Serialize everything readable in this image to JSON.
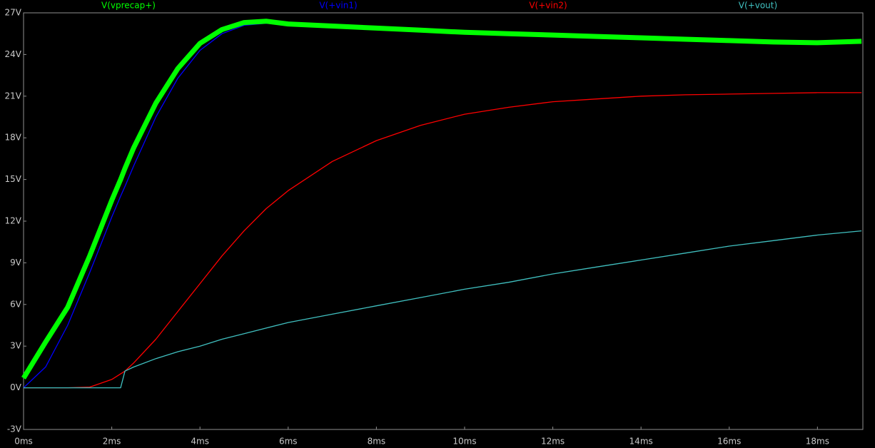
{
  "chart_data": {
    "type": "line",
    "x": [
      0,
      0.5,
      1,
      1.5,
      2,
      2.2,
      2.3,
      2.5,
      3,
      3.5,
      4,
      4.5,
      5,
      5.5,
      6,
      7,
      8,
      9,
      10,
      11,
      12,
      13,
      14,
      15,
      16,
      17,
      18,
      19
    ],
    "series": [
      {
        "name": "V(vprecap+)",
        "color": "#00ff00",
        "values": [
          0.7,
          3.3,
          5.8,
          9.5,
          13.5,
          15,
          15.8,
          17.3,
          20.5,
          23,
          24.8,
          25.8,
          26.3,
          26.4,
          26.2,
          26.05,
          25.9,
          25.75,
          25.6,
          25.5,
          25.4,
          25.3,
          25.2,
          25.1,
          25.0,
          24.9,
          24.85,
          24.95
        ]
      },
      {
        "name": "V(+vin1)",
        "color": "#0000ff",
        "values": [
          0,
          1.5,
          4.5,
          8.3,
          12.3,
          13.8,
          14.5,
          16,
          19.5,
          22.3,
          24.3,
          25.5,
          26.1,
          26.25,
          26.15,
          26.05,
          25.9,
          25.75,
          25.6,
          25.5,
          25.4,
          25.3,
          25.2,
          25.1,
          25.0,
          24.9,
          24.85,
          24.85
        ]
      },
      {
        "name": "V(+vin2)",
        "color": "#ff0000",
        "values": [
          0,
          0,
          0,
          0.05,
          0.6,
          1.0,
          1.2,
          1.8,
          3.5,
          5.5,
          7.5,
          9.5,
          11.3,
          12.9,
          14.2,
          16.3,
          17.8,
          18.9,
          19.7,
          20.2,
          20.6,
          20.8,
          21.0,
          21.1,
          21.15,
          21.2,
          21.25,
          21.25
        ]
      },
      {
        "name": "V(+vout)",
        "color": "#40c0c0",
        "values": [
          0,
          0,
          0,
          0,
          0,
          0,
          1.2,
          1.5,
          2.1,
          2.6,
          3.0,
          3.5,
          3.9,
          4.3,
          4.7,
          5.3,
          5.9,
          6.5,
          7.1,
          7.6,
          8.2,
          8.7,
          9.2,
          9.7,
          10.2,
          10.6,
          11.0,
          11.3
        ]
      }
    ],
    "xlim": [
      0,
      19.03
    ],
    "xticks": [
      {
        "value": 0,
        "label": "0ms"
      },
      {
        "value": 2,
        "label": "2ms"
      },
      {
        "value": 4,
        "label": "4ms"
      },
      {
        "value": 6,
        "label": "6ms"
      },
      {
        "value": 8,
        "label": "8ms"
      },
      {
        "value": 10,
        "label": "10ms"
      },
      {
        "value": 12,
        "label": "12ms"
      },
      {
        "value": 14,
        "label": "14ms"
      },
      {
        "value": 16,
        "label": "16ms"
      },
      {
        "value": 18,
        "label": "18ms"
      }
    ],
    "ylim": [
      -3,
      27
    ],
    "yticks": [
      {
        "value": -3,
        "label": "-3V"
      },
      {
        "value": 0,
        "label": "0V"
      },
      {
        "value": 3,
        "label": "3V"
      },
      {
        "value": 6,
        "label": "6V"
      },
      {
        "value": 9,
        "label": "9V"
      },
      {
        "value": 12,
        "label": "12V"
      },
      {
        "value": 15,
        "label": "15V"
      },
      {
        "value": 18,
        "label": "18V"
      },
      {
        "value": 21,
        "label": "21V"
      },
      {
        "value": 24,
        "label": "24V"
      },
      {
        "value": 27,
        "label": "27V"
      }
    ],
    "grid": false
  }
}
